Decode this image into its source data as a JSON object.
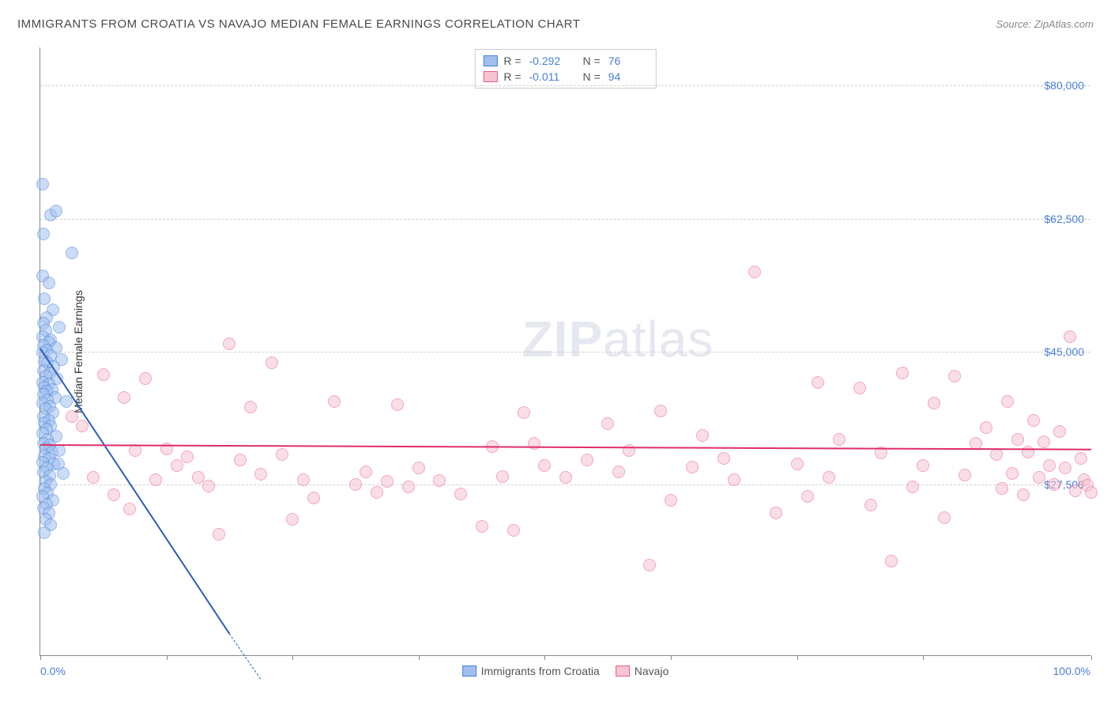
{
  "title": "IMMIGRANTS FROM CROATIA VS NAVAJO MEDIAN FEMALE EARNINGS CORRELATION CHART",
  "source_prefix": "Source: ",
  "source_name": "ZipAtlas.com",
  "watermark_a": "ZIP",
  "watermark_b": "atlas",
  "chart": {
    "type": "scatter",
    "y_axis_title": "Median Female Earnings",
    "x_min": 0.0,
    "x_max": 100.0,
    "x_label_min": "0.0%",
    "x_label_max": "100.0%",
    "x_tick_positions": [
      0,
      12,
      24,
      36,
      48,
      60,
      72,
      84,
      100
    ],
    "y_min": 5000,
    "y_max": 85000,
    "y_ticks": [
      {
        "v": 27500,
        "label": "$27,500"
      },
      {
        "v": 45000,
        "label": "$45,000"
      },
      {
        "v": 62500,
        "label": "$62,500"
      },
      {
        "v": 80000,
        "label": "$80,000"
      }
    ],
    "grid_color": "#d0d0d0",
    "axis_color": "#888888",
    "background_color": "#ffffff",
    "label_color": "#4a7fd8",
    "point_radius": 8,
    "point_opacity": 0.55,
    "series": [
      {
        "name": "Immigrants from Croatia",
        "fill": "#9fc0ef",
        "stroke": "#4a7fd8",
        "trend_color": "#2d5db8",
        "r_label": "R =",
        "r_value": "-0.292",
        "n_label": "N =",
        "n_value": "76",
        "trend": {
          "x1": 0,
          "y1": 45500,
          "x2": 18,
          "y2": 8000,
          "dash_x2": 21,
          "dash_y2": 2000
        },
        "points": [
          [
            0.2,
            67000
          ],
          [
            1.0,
            63000
          ],
          [
            1.5,
            63500
          ],
          [
            0.3,
            60500
          ],
          [
            3.0,
            58000
          ],
          [
            0.2,
            55000
          ],
          [
            0.8,
            54000
          ],
          [
            0.4,
            52000
          ],
          [
            1.2,
            50500
          ],
          [
            0.6,
            49500
          ],
          [
            0.3,
            48700
          ],
          [
            1.8,
            48200
          ],
          [
            0.5,
            47800
          ],
          [
            0.2,
            47000
          ],
          [
            1.0,
            46600
          ],
          [
            0.8,
            46200
          ],
          [
            0.3,
            45800
          ],
          [
            1.5,
            45500
          ],
          [
            0.6,
            45200
          ],
          [
            0.2,
            44900
          ],
          [
            1.0,
            44500
          ],
          [
            2.0,
            44000
          ],
          [
            0.4,
            43800
          ],
          [
            0.7,
            43500
          ],
          [
            1.3,
            43000
          ],
          [
            0.3,
            42500
          ],
          [
            0.9,
            42200
          ],
          [
            0.5,
            41800
          ],
          [
            1.6,
            41500
          ],
          [
            0.2,
            41000
          ],
          [
            0.8,
            40700
          ],
          [
            0.4,
            40300
          ],
          [
            1.1,
            40000
          ],
          [
            0.6,
            39800
          ],
          [
            0.3,
            39400
          ],
          [
            1.4,
            39000
          ],
          [
            0.7,
            38700
          ],
          [
            0.2,
            38200
          ],
          [
            0.9,
            37800
          ],
          [
            0.5,
            37500
          ],
          [
            1.2,
            37000
          ],
          [
            0.3,
            36500
          ],
          [
            0.8,
            36000
          ],
          [
            0.4,
            35700
          ],
          [
            1.0,
            35200
          ],
          [
            0.6,
            34800
          ],
          [
            0.2,
            34300
          ],
          [
            1.5,
            33900
          ],
          [
            0.7,
            33500
          ],
          [
            0.3,
            33000
          ],
          [
            0.9,
            32700
          ],
          [
            0.5,
            32200
          ],
          [
            1.1,
            31800
          ],
          [
            0.4,
            31300
          ],
          [
            0.8,
            31000
          ],
          [
            0.2,
            30500
          ],
          [
            1.3,
            30200
          ],
          [
            0.6,
            29700
          ],
          [
            0.3,
            29200
          ],
          [
            0.9,
            28700
          ],
          [
            0.5,
            28000
          ],
          [
            1.0,
            27500
          ],
          [
            0.4,
            27000
          ],
          [
            0.7,
            26400
          ],
          [
            0.2,
            26000
          ],
          [
            1.2,
            25500
          ],
          [
            0.6,
            25000
          ],
          [
            0.3,
            24400
          ],
          [
            0.8,
            23800
          ],
          [
            0.5,
            23000
          ],
          [
            1.0,
            22200
          ],
          [
            0.4,
            21200
          ],
          [
            1.7,
            30200
          ],
          [
            2.5,
            38500
          ],
          [
            2.2,
            29000
          ],
          [
            1.8,
            32000
          ]
        ]
      },
      {
        "name": "Navajo",
        "fill": "#f7c4d0",
        "stroke": "#e85d8b",
        "trend_color": "#e02d6c",
        "r_label": "R =",
        "r_value": "-0.011",
        "n_label": "N =",
        "n_value": "94",
        "trend": {
          "x1": 0,
          "y1": 32800,
          "x2": 100,
          "y2": 32200
        },
        "points": [
          [
            3,
            36500
          ],
          [
            4,
            35200
          ],
          [
            5,
            28500
          ],
          [
            6,
            42000
          ],
          [
            7,
            26200
          ],
          [
            8,
            39000
          ],
          [
            8.5,
            24300
          ],
          [
            9,
            32000
          ],
          [
            10,
            41500
          ],
          [
            11,
            28200
          ],
          [
            12,
            32200
          ],
          [
            13,
            30000
          ],
          [
            14,
            31200
          ],
          [
            15,
            28500
          ],
          [
            16,
            27300
          ],
          [
            17,
            21000
          ],
          [
            18,
            46000
          ],
          [
            19,
            30800
          ],
          [
            20,
            37700
          ],
          [
            21,
            28900
          ],
          [
            22,
            43500
          ],
          [
            23,
            31500
          ],
          [
            24,
            23000
          ],
          [
            25,
            28200
          ],
          [
            26,
            25800
          ],
          [
            28,
            38500
          ],
          [
            30,
            27500
          ],
          [
            31,
            29200
          ],
          [
            32,
            26500
          ],
          [
            33,
            28000
          ],
          [
            34,
            38000
          ],
          [
            35,
            27200
          ],
          [
            36,
            29700
          ],
          [
            38,
            28100
          ],
          [
            40,
            26300
          ],
          [
            42,
            22000
          ],
          [
            43,
            32500
          ],
          [
            44,
            28600
          ],
          [
            45,
            21500
          ],
          [
            46,
            37000
          ],
          [
            47,
            33000
          ],
          [
            48,
            30000
          ],
          [
            50,
            28500
          ],
          [
            52,
            30800
          ],
          [
            54,
            35500
          ],
          [
            55,
            29200
          ],
          [
            56,
            32000
          ],
          [
            58,
            17000
          ],
          [
            59,
            37200
          ],
          [
            60,
            25500
          ],
          [
            62,
            29800
          ],
          [
            63,
            34000
          ],
          [
            65,
            31000
          ],
          [
            66,
            28200
          ],
          [
            68,
            55500
          ],
          [
            70,
            23800
          ],
          [
            72,
            30200
          ],
          [
            73,
            26000
          ],
          [
            74,
            41000
          ],
          [
            75,
            28500
          ],
          [
            76,
            33500
          ],
          [
            78,
            40200
          ],
          [
            79,
            24800
          ],
          [
            80,
            31700
          ],
          [
            81,
            17500
          ],
          [
            82,
            42200
          ],
          [
            83,
            27200
          ],
          [
            84,
            30000
          ],
          [
            85,
            38200
          ],
          [
            86,
            23200
          ],
          [
            87,
            41800
          ],
          [
            88,
            28800
          ],
          [
            89,
            33000
          ],
          [
            90,
            35000
          ],
          [
            91,
            31500
          ],
          [
            91.5,
            27000
          ],
          [
            92,
            38500
          ],
          [
            92.5,
            29000
          ],
          [
            93,
            33500
          ],
          [
            93.5,
            26200
          ],
          [
            94,
            31800
          ],
          [
            94.5,
            36000
          ],
          [
            95,
            28500
          ],
          [
            95.5,
            33200
          ],
          [
            96,
            30000
          ],
          [
            96.5,
            27500
          ],
          [
            97,
            34500
          ],
          [
            97.5,
            29700
          ],
          [
            98,
            47000
          ],
          [
            98.5,
            26700
          ],
          [
            99,
            31000
          ],
          [
            99.3,
            28200
          ],
          [
            99.6,
            27400
          ],
          [
            100,
            26500
          ]
        ]
      }
    ]
  }
}
